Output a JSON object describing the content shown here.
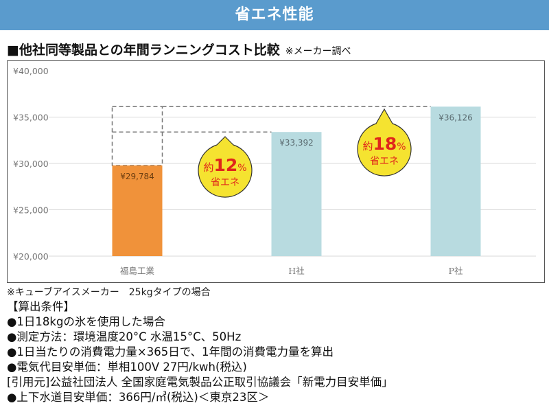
{
  "banner": {
    "title": "省エネ性能"
  },
  "subtitle": {
    "text": "■他社同等製品との年間ランニングコスト比較",
    "note": "※メーカー調べ"
  },
  "chart_data": {
    "type": "bar",
    "title": "他社同等製品との年間ランニングコスト比較",
    "categories": [
      "福島工業",
      "H社",
      "P社"
    ],
    "values": [
      29784,
      33392,
      36126
    ],
    "value_labels": [
      "¥29,784",
      "¥33,392",
      "¥36,126"
    ],
    "bar_colors": [
      "#f0923a",
      "#b8dbe0",
      "#b8dbe0"
    ],
    "ylim": [
      20000,
      40000
    ],
    "yticks": [
      20000,
      25000,
      30000,
      35000,
      40000
    ],
    "ytick_labels": [
      "¥20,000",
      "¥25,000",
      "¥30,000",
      "¥35,000",
      "¥40,000"
    ],
    "grid": true,
    "xlabel": "",
    "ylabel": "",
    "annotations": [
      {
        "prefix": "約",
        "value": "12",
        "unit": "%",
        "label": "省エネ",
        "compared_to": "H社"
      },
      {
        "prefix": "約",
        "value": "18",
        "unit": "%",
        "label": "省エネ",
        "compared_to": "P社"
      }
    ],
    "annotation_colors": {
      "bubble": "#f5e330",
      "number": "#e0261b",
      "text": "#e0261b"
    }
  },
  "footer": {
    "footnote": "※キューブアイスメーカー　25kgタイプの場合",
    "lines": [
      "【算出条件】",
      "●1日18kgの氷を使用した場合",
      "●測定方法：環境温度20°C 水温15°C、50Hz",
      "●1日当たりの消費電力量×365日で、1年間の消費電力量を算出",
      "●電気代目安単価：単相100V 27円/kwh(税込)",
      "[引用元]公益社団法人 全国家庭電気製品公正取引協議会「新電力目安単価」",
      "●上下水道目安単価：366円/㎥(税込)＜東京23区＞"
    ]
  }
}
